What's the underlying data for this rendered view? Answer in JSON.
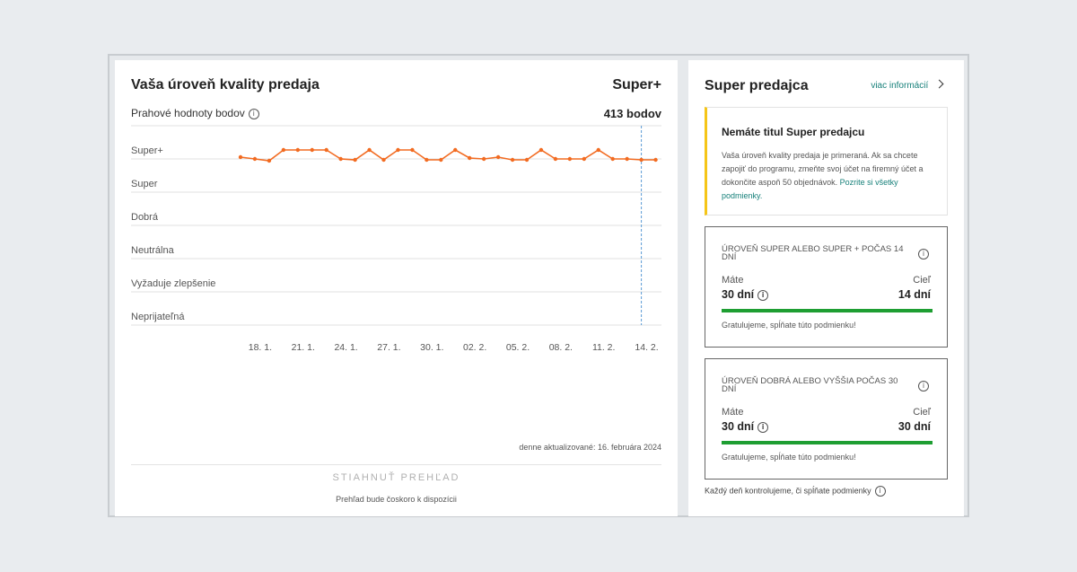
{
  "quality": {
    "title": "Vaša úroveň kvality predaja",
    "level": "Super+",
    "threshold_label": "Prahové hodnoty bodov",
    "score": "413 bodov",
    "bands": [
      "Super+",
      "Super",
      "Dobrá",
      "Neutrálna",
      "Vyžaduje zlepšenie",
      "Neprijateľná"
    ],
    "x_ticks": [
      "18. 1.",
      "21. 1.",
      "24. 1.",
      "27. 1.",
      "30. 1.",
      "02. 2.",
      "05. 2.",
      "08. 2.",
      "11. 2.",
      "14. 2."
    ],
    "updated": "denne aktualizované: 16. februára 2024",
    "download_label": "STIAHNUŤ PREHĽAD",
    "download_note": "Prehľad bude čoskoro k dispozícii"
  },
  "chart_data": {
    "type": "line",
    "series": [
      {
        "values": [
          "Super+",
          "Super+",
          "Super+",
          "Super+",
          "Super+",
          "Super+",
          "Super+",
          "Super+",
          "Super+",
          "Super+",
          "Super+",
          "Super+",
          "Super+",
          "Super+",
          "Super+",
          "Super+",
          "Super+",
          "Super+",
          "Super+",
          "Super+",
          "Super+",
          "Super+",
          "Super+",
          "Super+",
          "Super+",
          "Super+",
          "Super+",
          "Super+",
          "Super+",
          "Super+"
        ]
      }
    ],
    "x_range": [
      "16. 1.",
      "14. 2."
    ],
    "line_color": "#f26b21"
  },
  "super_seller": {
    "title": "Super predajca",
    "more_link": "viac informácií",
    "notice_title": "Nemáte titul Super predajcu",
    "notice_text": "Vaša úroveň kvality predaja je primeraná. Ak sa chcete zapojiť do programu, zmeňte svoj účet na firemný účet a dokončite aspoň 50 objednávok.",
    "notice_link": "Pozrite si všetky podmienky.",
    "conditions": [
      {
        "title": "ÚROVEŇ SUPER ALEBO SUPER + POČAS 14 DNÍ",
        "have_label": "Máte",
        "have_value": "30 dní",
        "goal_label": "Cieľ",
        "goal_value": "14 dní",
        "progress": 1.0,
        "message": "Gratulujeme, spĺňate túto podmienku!"
      },
      {
        "title": "ÚROVEŇ DOBRÁ ALEBO VYŠŠIA POČAS 30 DNÍ",
        "have_label": "Máte",
        "have_value": "30 dní",
        "goal_label": "Cieľ",
        "goal_value": "30 dní",
        "progress": 1.0,
        "message": "Gratulujeme, spĺňate túto podmienku!"
      }
    ],
    "footer": "Každý deň kontrolujeme, či spĺňate podmienky"
  }
}
